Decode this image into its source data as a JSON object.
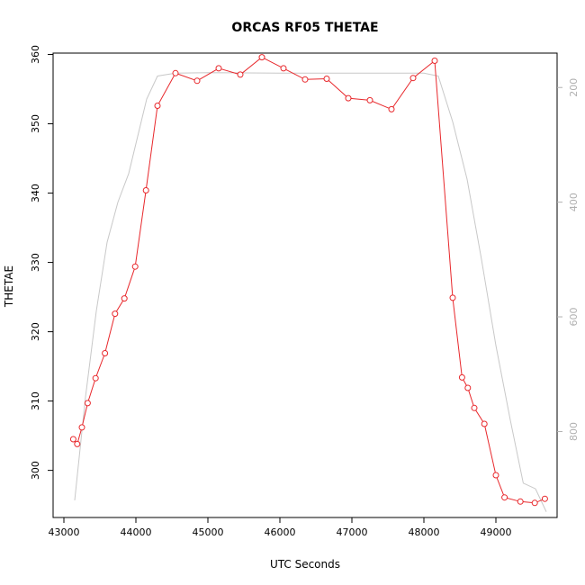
{
  "chart_data": {
    "type": "line",
    "title": "ORCAS RF05 THETAE",
    "xlabel": "UTC Seconds",
    "ylabel": "THETAE",
    "xlim": [
      42850,
      49850
    ],
    "ylim": [
      293.2,
      360.2
    ],
    "x_ticks": [
      43000,
      44000,
      45000,
      46000,
      47000,
      48000,
      49000
    ],
    "y_ticks": [
      300,
      310,
      320,
      330,
      340,
      350,
      360
    ],
    "y2_ticks": [
      200,
      400,
      600,
      800
    ],
    "y2lim": [
      950,
      140
    ],
    "series": [
      {
        "role": "primary",
        "color": "#e8282c",
        "marker": "open-circle",
        "x": [
          43130,
          43185,
          43250,
          43330,
          43440,
          43570,
          43710,
          43840,
          43990,
          44140,
          44300,
          44550,
          44850,
          45150,
          45450,
          45750,
          46050,
          46350,
          46650,
          46950,
          47250,
          47550,
          47850,
          48150,
          48400,
          48530,
          48610,
          48700,
          48840,
          49000,
          49120,
          49340,
          49540,
          49680
        ],
        "y": [
          304.5,
          303.8,
          306.2,
          309.7,
          313.3,
          316.9,
          322.6,
          324.8,
          329.4,
          340.4,
          352.6,
          357.3,
          356.2,
          358.0,
          357.1,
          359.6,
          358.0,
          356.4,
          356.5,
          353.7,
          353.4,
          352.1,
          356.6,
          359.1,
          324.9,
          313.4,
          311.9,
          309.0,
          306.7,
          299.3,
          296.1,
          295.5,
          295.3,
          295.9
        ]
      },
      {
        "role": "secondary-right-axis",
        "color": "#c8c8c8",
        "x": [
          43150,
          43300,
          43450,
          43600,
          43750,
          43900,
          44150,
          44300,
          44550,
          45000,
          46000,
          47000,
          48000,
          48200,
          48400,
          48600,
          48800,
          49000,
          49200,
          49380,
          49550,
          49700
        ],
        "y": [
          920,
          740,
          590,
          470,
          400,
          350,
          220,
          180,
          175,
          174,
          175,
          175,
          175,
          180,
          260,
          360,
          500,
          650,
          780,
          890,
          900,
          940
        ]
      }
    ]
  }
}
